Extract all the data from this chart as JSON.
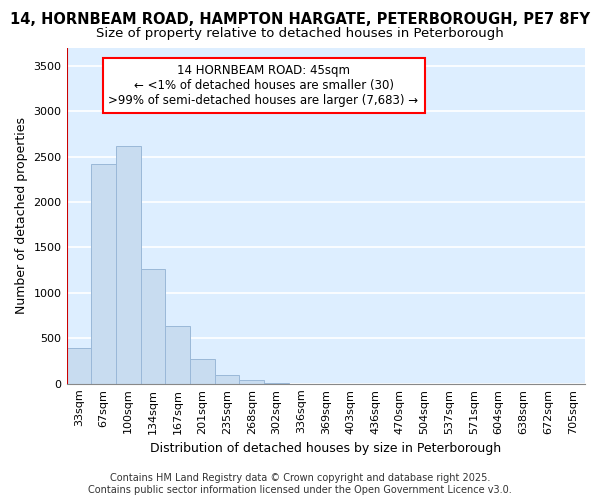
{
  "title_line1": "14, HORNBEAM ROAD, HAMPTON HARGATE, PETERBOROUGH, PE7 8FY",
  "title_line2": "Size of property relative to detached houses in Peterborough",
  "xlabel": "Distribution of detached houses by size in Peterborough",
  "ylabel": "Number of detached properties",
  "bar_color": "#c8dcf0",
  "bar_edge_color": "#9ab8d8",
  "categories": [
    "33sqm",
    "67sqm",
    "100sqm",
    "134sqm",
    "167sqm",
    "201sqm",
    "235sqm",
    "268sqm",
    "302sqm",
    "336sqm",
    "369sqm",
    "403sqm",
    "436sqm",
    "470sqm",
    "504sqm",
    "537sqm",
    "571sqm",
    "604sqm",
    "638sqm",
    "672sqm",
    "705sqm"
  ],
  "values": [
    390,
    2420,
    2620,
    1260,
    640,
    270,
    100,
    45,
    5,
    0,
    0,
    0,
    0,
    0,
    0,
    0,
    0,
    0,
    0,
    0,
    0
  ],
  "ylim": [
    0,
    3700
  ],
  "yticks": [
    0,
    500,
    1000,
    1500,
    2000,
    2500,
    3000,
    3500
  ],
  "annotation_text": "14 HORNBEAM ROAD: 45sqm\n← <1% of detached houses are smaller (30)\n>99% of semi-detached houses are larger (7,683) →",
  "background_color": "#ddeeff",
  "grid_color": "#ffffff",
  "marker_line_color": "#cc0000",
  "footer_line1": "Contains HM Land Registry data © Crown copyright and database right 2025.",
  "footer_line2": "Contains public sector information licensed under the Open Government Licence v3.0.",
  "title_fontsize": 10.5,
  "subtitle_fontsize": 9.5,
  "tick_fontsize": 8,
  "ylabel_fontsize": 9,
  "xlabel_fontsize": 9,
  "annotation_fontsize": 8.5,
  "footer_fontsize": 7
}
